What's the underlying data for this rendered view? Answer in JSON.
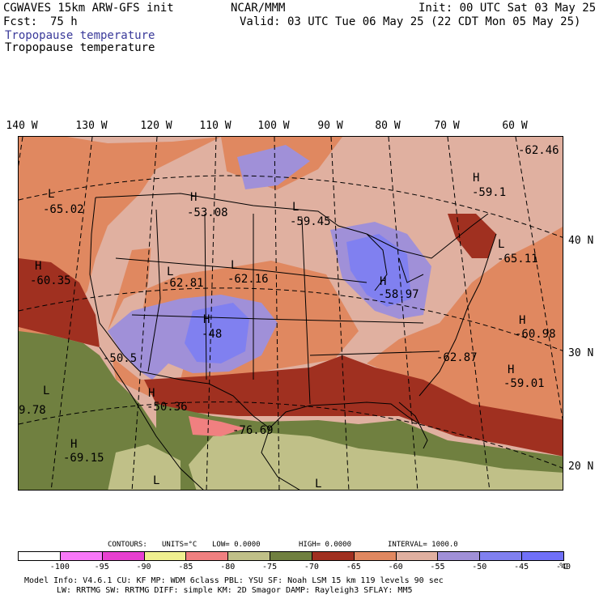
{
  "header": {
    "model": "CGWAVES 15km ARW-GFS init",
    "org": "NCAR/MMM",
    "init": "Init: 00 UTC Sat 03 May 25",
    "fcst_label": "Fcst:",
    "fcst_value": "75 h",
    "valid": "Valid: 03 UTC Tue 06 May 25 (22 CDT Mon 05 May 25)",
    "field1": "Tropopause temperature",
    "field2": "Tropopause temperature"
  },
  "longitudes": [
    "140 W",
    "130 W",
    "120 W",
    "110 W",
    "100 W",
    "90 W",
    "80 W",
    "70 W",
    "60 W"
  ],
  "latitudes": [
    "40 N",
    "30 N",
    "20 N"
  ],
  "map": {
    "colors": {
      "c_90_85": "#f0f090",
      "c_85_80": "#f08080",
      "c_80_75": "#c0c088",
      "c_75_70": "#708040",
      "c_70_65": "#a03020",
      "c_65_60": "#e08860",
      "c_60_55": "#e0b0a0",
      "c_55_50": "#a090d8",
      "c_50_45": "#8080f0",
      "c_45_40": "#7070f8"
    },
    "labels": [
      {
        "h": "L",
        "v": "-65.02"
      },
      {
        "h": "H",
        "v": "-53.08"
      },
      {
        "h": "L",
        "v": "-59.45"
      },
      {
        "h": "",
        "v": "-62.46"
      },
      {
        "h": "H",
        "v": "-59.1"
      },
      {
        "h": "L",
        "v": "-65.11"
      },
      {
        "h": "H",
        "v": "-60.35"
      },
      {
        "h": "L",
        "v": "-62.81"
      },
      {
        "h": "L",
        "v": "-62.16"
      },
      {
        "h": "H",
        "v": "-58.97"
      },
      {
        "h": "H",
        "v": "-48"
      },
      {
        "h": "",
        "v": "-50.5"
      },
      {
        "h": "H",
        "v": "-60.98"
      },
      {
        "h": "",
        "v": "-62.87"
      },
      {
        "h": "H",
        "v": "-59.01"
      },
      {
        "h": "H",
        "v": "-50.36"
      },
      {
        "h": "",
        "v": "9.78"
      },
      {
        "h": "",
        "v": "-76.69"
      },
      {
        "h": "H",
        "v": "-69.15"
      },
      {
        "h": "L",
        "v": ""
      },
      {
        "h": "L",
        "v": ""
      },
      {
        "h": "L",
        "v": ""
      }
    ]
  },
  "contours": {
    "title": "CONTOURS:",
    "units": "UNITS=°C",
    "low": "LOW= 0.0000",
    "high": "HIGH= 0.0000",
    "interval": "INTERVAL= 1000.0"
  },
  "colorbar": {
    "boxes": [
      {
        "color": "#ffffff"
      },
      {
        "color": "#f878f8"
      },
      {
        "color": "#e840d0"
      },
      {
        "color": "#f0f090"
      },
      {
        "color": "#f08080"
      },
      {
        "color": "#c0c088"
      },
      {
        "color": "#708040"
      },
      {
        "color": "#a03020"
      },
      {
        "color": "#e08860"
      },
      {
        "color": "#e0b0a0"
      },
      {
        "color": "#a090d8"
      },
      {
        "color": "#8080f0"
      },
      {
        "color": "#7070f8"
      }
    ],
    "labels": [
      "-100",
      "-95",
      "-90",
      "-85",
      "-80",
      "-75",
      "-70",
      "-65",
      "-60",
      "-55",
      "-50",
      "-45",
      "-40"
    ],
    "unit": "°C"
  },
  "model_info": {
    "line1": "Model Info: V4.6.1     CU: KF       MP: WDM 6class  PBL: YSU        SF: Noah LSM      15 km   119 levels   90 sec",
    "line2": "LW: RRTMG      SW: RRTMG   DIFF: simple KM: 2D Smagor DAMP: Rayleigh3  SFLAY: MM5"
  }
}
